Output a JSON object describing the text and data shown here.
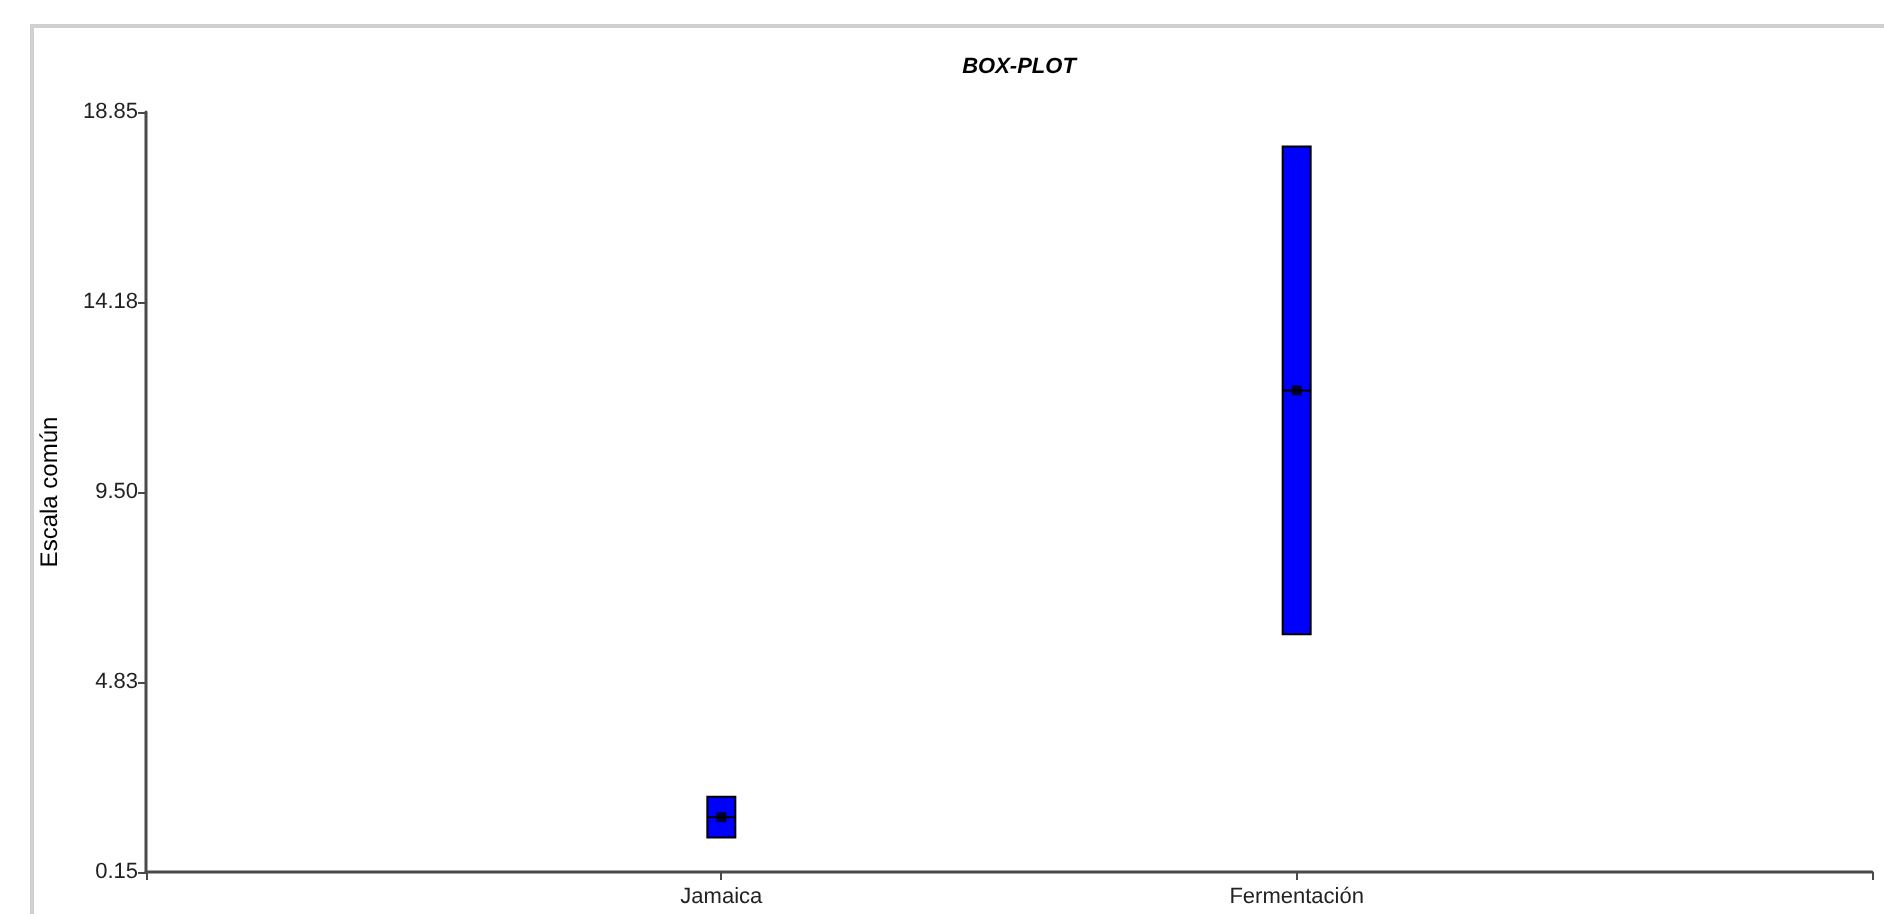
{
  "chart_data": {
    "type": "box",
    "title": "BOX-PLOT",
    "ylabel": "Escala común",
    "categories": [
      "Jamaica",
      "Fermentación"
    ],
    "boxes": [
      {
        "low": 1.0,
        "q1": 1.0,
        "median": 1.5,
        "q3": 2.0,
        "high": 2.0,
        "mean": 1.5
      },
      {
        "low": 6.0,
        "q1": 6.0,
        "median": 12.0,
        "q3": 18.0,
        "high": 18.0,
        "mean": 12.0
      }
    ],
    "color": "#0000ff",
    "marker": "square",
    "ylim": [
      0.15,
      18.85
    ],
    "yticks": [
      0.15,
      {
        "value": 4.825,
        "label": "4.83"
      },
      {
        "value": 9.5,
        "label": "9.50"
      },
      {
        "value": 14.175,
        "label": "14.18"
      },
      18.85
    ]
  }
}
